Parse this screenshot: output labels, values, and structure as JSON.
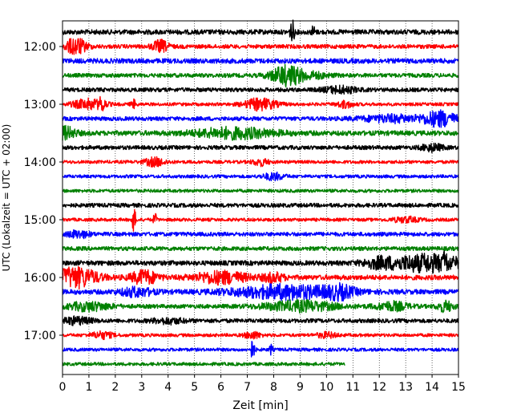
{
  "chart_data": {
    "type": "line",
    "title": "",
    "xlabel": "Zeit  [min]",
    "ylabel": "UTC (Lokalzeit = UTC + 02:00)",
    "xlim": [
      0,
      15
    ],
    "x_ticks": [
      0,
      1,
      2,
      3,
      4,
      5,
      6,
      7,
      8,
      9,
      10,
      11,
      12,
      13,
      14,
      15
    ],
    "y_tick_labels": [
      "12:00",
      "13:00",
      "14:00",
      "15:00",
      "16:00",
      "17:00"
    ],
    "trace_interval_minutes": 15,
    "grid": "vertical dotted at each minute",
    "colors": [
      "#000000",
      "#ff0000",
      "#0000ff",
      "#008000"
    ],
    "traces": [
      {
        "start": "11:45",
        "end_min": 15,
        "amp": 3,
        "events": [
          [
            8.7,
            14,
            0.08
          ],
          [
            9.5,
            8,
            0.06
          ]
        ]
      },
      {
        "start": "12:00",
        "end_min": 15,
        "amp": 2.5,
        "events": [
          [
            0.5,
            10,
            0.4
          ],
          [
            3.7,
            7,
            0.3
          ]
        ]
      },
      {
        "start": "12:15",
        "end_min": 15,
        "amp": 3,
        "events": []
      },
      {
        "start": "12:30",
        "end_min": 15,
        "amp": 2.5,
        "events": [
          [
            8.5,
            12,
            0.6
          ],
          [
            9.5,
            3,
            0.6
          ]
        ]
      },
      {
        "start": "12:45",
        "end_min": 15,
        "amp": 2.5,
        "events": [
          [
            10.5,
            4,
            0.6
          ]
        ]
      },
      {
        "start": "13:00",
        "end_min": 15,
        "amp": 2,
        "events": [
          [
            1.0,
            6,
            0.6
          ],
          [
            1.5,
            8,
            0.1
          ],
          [
            2.7,
            5,
            0.1
          ],
          [
            7.5,
            7,
            0.6
          ],
          [
            10.7,
            4,
            0.3
          ]
        ]
      },
      {
        "start": "13:15",
        "end_min": 15,
        "amp": 2.5,
        "events": [
          [
            12.5,
            4,
            1.2
          ],
          [
            14.3,
            9,
            0.6
          ]
        ]
      },
      {
        "start": "13:30",
        "end_min": 15,
        "amp": 3,
        "events": [
          [
            0.1,
            7,
            0.4
          ],
          [
            6.5,
            6,
            1.5
          ]
        ]
      },
      {
        "start": "13:45",
        "end_min": 15,
        "amp": 2.5,
        "events": [
          [
            14.0,
            4,
            0.4
          ]
        ]
      },
      {
        "start": "14:00",
        "end_min": 15,
        "amp": 2,
        "events": [
          [
            3.5,
            5,
            0.4
          ],
          [
            7.5,
            4,
            0.3
          ]
        ]
      },
      {
        "start": "14:15",
        "end_min": 15,
        "amp": 2,
        "events": [
          [
            8.0,
            4,
            0.4
          ]
        ]
      },
      {
        "start": "14:30",
        "end_min": 15,
        "amp": 2,
        "events": []
      },
      {
        "start": "14:45",
        "end_min": 15,
        "amp": 2.5,
        "events": []
      },
      {
        "start": "15:00",
        "end_min": 15,
        "amp": 2,
        "events": [
          [
            2.7,
            14,
            0.08
          ],
          [
            3.5,
            8,
            0.06
          ],
          [
            13.0,
            3,
            0.5
          ]
        ]
      },
      {
        "start": "15:15",
        "end_min": 15,
        "amp": 2.5,
        "events": [
          [
            0.6,
            4,
            0.4
          ]
        ]
      },
      {
        "start": "15:30",
        "end_min": 15,
        "amp": 2.5,
        "events": []
      },
      {
        "start": "15:45",
        "end_min": 15,
        "amp": 3,
        "events": [
          [
            12.0,
            5,
            0.6
          ],
          [
            13.8,
            10,
            1.4
          ],
          [
            14.5,
            18,
            0.05
          ]
        ]
      },
      {
        "start": "16:00",
        "end_min": 15,
        "amp": 3,
        "events": [
          [
            0.5,
            12,
            0.8
          ],
          [
            3.1,
            8,
            0.5
          ],
          [
            6.0,
            7,
            1.0
          ],
          [
            8.0,
            5,
            0.4
          ]
        ]
      },
      {
        "start": "16:15",
        "end_min": 15,
        "amp": 3,
        "events": [
          [
            8.5,
            8,
            2.0
          ],
          [
            10.5,
            6,
            0.5
          ],
          [
            2.8,
            5,
            0.6
          ]
        ]
      },
      {
        "start": "16:30",
        "end_min": 15,
        "amp": 2.5,
        "events": [
          [
            1.0,
            5,
            0.8
          ],
          [
            9.0,
            6,
            1.4
          ],
          [
            12.5,
            5,
            0.6
          ],
          [
            14.5,
            6,
            0.3
          ]
        ]
      },
      {
        "start": "16:45",
        "end_min": 15,
        "amp": 2.5,
        "events": [
          [
            0.5,
            4,
            0.6
          ],
          [
            4.0,
            3,
            0.6
          ]
        ]
      },
      {
        "start": "17:00",
        "end_min": 15,
        "amp": 2,
        "events": [
          [
            1.5,
            4,
            0.4
          ],
          [
            7.2,
            4,
            0.3
          ],
          [
            10.0,
            3,
            0.4
          ]
        ]
      },
      {
        "start": "17:15",
        "end_min": 15,
        "amp": 2,
        "events": [
          [
            7.2,
            12,
            0.08
          ],
          [
            7.9,
            6,
            0.06
          ]
        ]
      },
      {
        "start": "17:30",
        "end_min": 10.7,
        "amp": 2,
        "events": []
      }
    ]
  }
}
